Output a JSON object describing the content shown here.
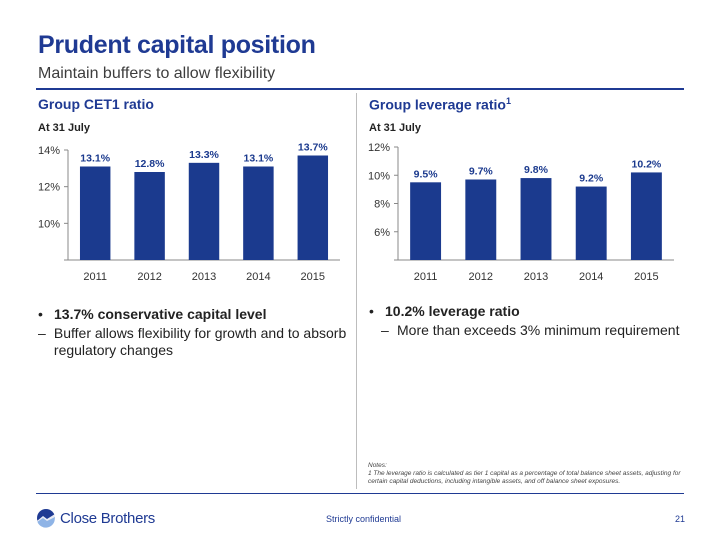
{
  "header": {
    "title": "Prudent capital position",
    "subtitle": "Maintain buffers to allow flexibility"
  },
  "left": {
    "section_title": "Group CET1 ratio",
    "as_of": "At 31 July",
    "bullet": "13.7% conservative capital level",
    "subbullet": "Buffer allows flexibility for growth and to absorb regulatory changes"
  },
  "right": {
    "section_title": "Group leverage ratio",
    "footnote_mark": "1",
    "as_of": "At 31 July",
    "bullet": "10.2% leverage ratio",
    "subbullet": "More than exceeds 3% minimum requirement"
  },
  "notes": {
    "heading": "Notes:",
    "text": "1 The leverage ratio is calculated as tier 1 capital as a percentage of total balance sheet assets, adjusting for certain capital deductions, including intangible assets, and off balance sheet exposures."
  },
  "footer": {
    "brand": "Close Brothers",
    "confidential": "Strictly confidential",
    "page_number": "21"
  },
  "colors": {
    "primary": "#1f3a93",
    "bar": "#1b3a8e"
  },
  "chart_data": [
    {
      "type": "bar",
      "title": "Group CET1 ratio",
      "categories": [
        "2011",
        "2012",
        "2013",
        "2014",
        "2015"
      ],
      "values": [
        13.1,
        12.8,
        13.3,
        13.1,
        13.7
      ],
      "data_labels": [
        "13.1%",
        "12.8%",
        "13.3%",
        "13.1%",
        "13.7%"
      ],
      "yticks": [
        10,
        12,
        14
      ],
      "ytick_labels": [
        "10%",
        "12%",
        "14%"
      ],
      "ylim": [
        8,
        14
      ],
      "grid": false
    },
    {
      "type": "bar",
      "title": "Group leverage ratio",
      "categories": [
        "2011",
        "2012",
        "2013",
        "2014",
        "2015"
      ],
      "values": [
        9.5,
        9.7,
        9.8,
        9.2,
        10.2
      ],
      "data_labels": [
        "9.5%",
        "9.7%",
        "9.8%",
        "9.2%",
        "10.2%"
      ],
      "yticks": [
        6,
        8,
        10,
        12
      ],
      "ytick_labels": [
        "6%",
        "8%",
        "10%",
        "12%"
      ],
      "ylim": [
        4,
        12
      ],
      "grid": false
    }
  ]
}
